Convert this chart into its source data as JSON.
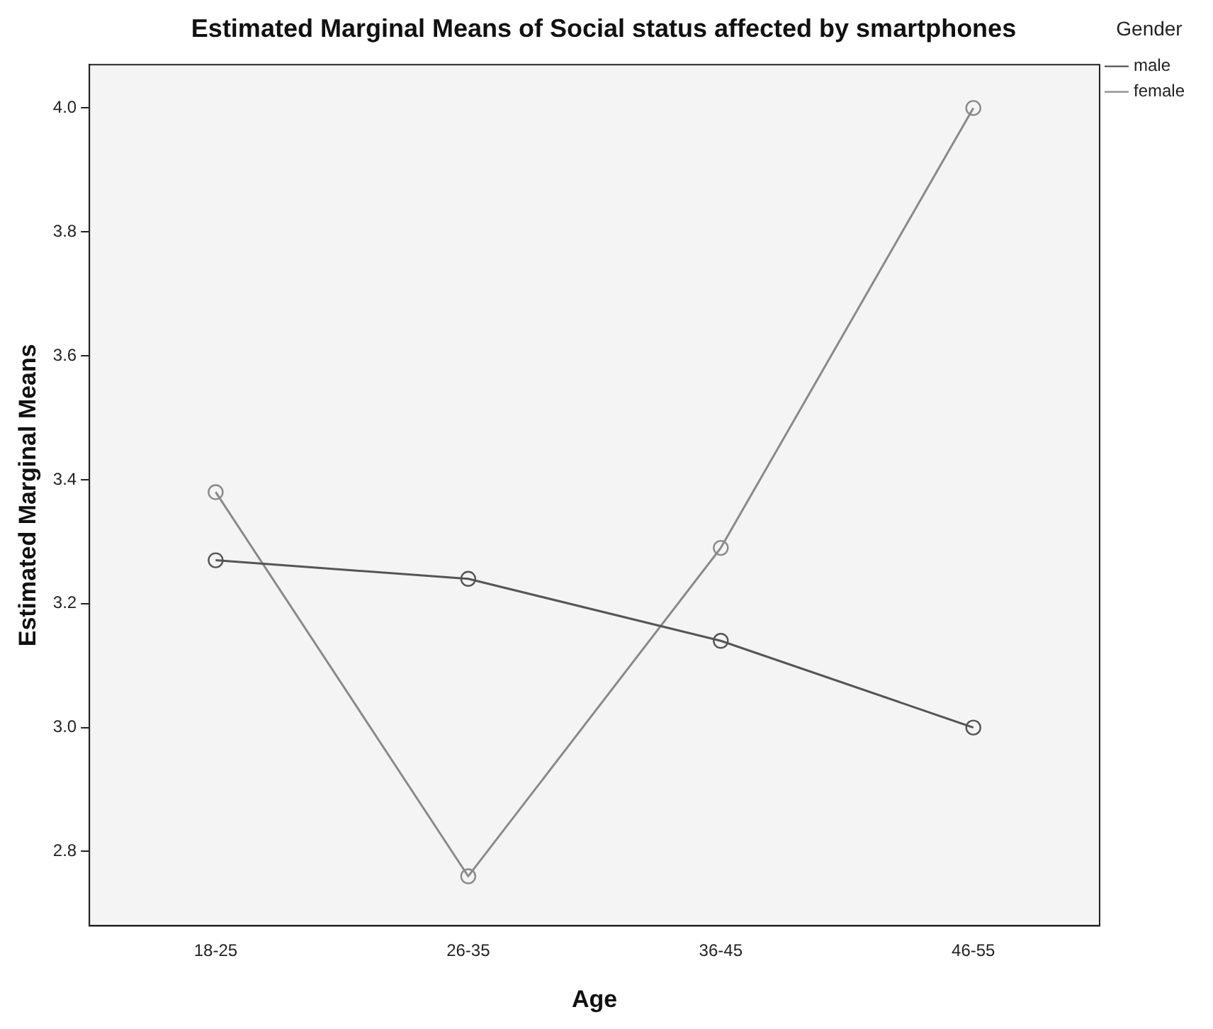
{
  "chart_data": {
    "type": "line",
    "title": "Estimated Marginal Means of Social status affected by smartphones",
    "xlabel": "Age",
    "ylabel": "Estimated Marginal Means",
    "legend_title": "Gender",
    "categories": [
      "18-25",
      "26-35",
      "36-45",
      "46-55"
    ],
    "series": [
      {
        "name": "male",
        "color": "#555555",
        "values": [
          3.27,
          3.24,
          3.14,
          3.0
        ]
      },
      {
        "name": "female",
        "color": "#8a8a8a",
        "values": [
          3.38,
          2.76,
          3.29,
          4.0
        ]
      }
    ],
    "ylim": [
      2.68,
      4.07
    ],
    "yticks": [
      {
        "value": 2.8,
        "label": "2.8"
      },
      {
        "value": 3.0,
        "label": "3.0"
      },
      {
        "value": 3.2,
        "label": "3.2"
      },
      {
        "value": 3.4,
        "label": "3.4"
      },
      {
        "value": 3.6,
        "label": "3.6"
      },
      {
        "value": 3.8,
        "label": "3.8"
      },
      {
        "value": 4.0,
        "label": "4.0"
      }
    ],
    "grid": false,
    "legend": "top right",
    "marker": "circle",
    "line_style": "solid"
  }
}
